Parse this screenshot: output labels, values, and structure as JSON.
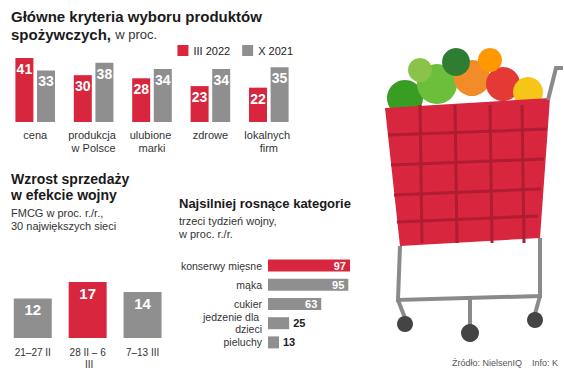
{
  "chart_data": [
    {
      "type": "bar",
      "title": "Główne kryteria wyboru produktów\nspożywczych,",
      "subtitle": "w proc.",
      "categories": [
        "cena",
        "produkcja w Polsce",
        "ulubione marki",
        "zdrowe",
        "lokalnych firm"
      ],
      "series": [
        {
          "name": "III 2022",
          "color": "#d7263d",
          "values": [
            41,
            30,
            28,
            23,
            22
          ]
        },
        {
          "name": "X 2021",
          "color": "#8f8f8f",
          "values": [
            33,
            38,
            34,
            34,
            35
          ]
        }
      ],
      "ylim": [
        0,
        41
      ],
      "yticks": [],
      "grid": false,
      "legend": "top-right",
      "data_labels": true,
      "tick_labels": "x"
    },
    {
      "type": "bar",
      "title": "Wzrost sprzedaży\nw efekcie wojny",
      "subtitle": "FMCG w proc. r./r.,\n30 największych sieci",
      "categories": [
        "21–27 II",
        "28 II – 6 III",
        "7–13 III"
      ],
      "values": [
        12,
        17,
        14
      ],
      "colors": [
        "#8f8f8f",
        "#d7263d",
        "#8f8f8f"
      ],
      "ylim": [
        0,
        17
      ],
      "yticks": [],
      "grid": false,
      "data_labels": true,
      "tick_labels": "x"
    },
    {
      "type": "bar",
      "orientation": "horizontal",
      "title": "Najsilniej rosnące kategorie",
      "subtitle": "trzeci tydzień wojny,\nw proc. r./r.",
      "categories": [
        "konserwy mięsne",
        "mąka",
        "cukier",
        "jedzenie dla dzieci",
        "pieluchy"
      ],
      "values": [
        97,
        95,
        63,
        25,
        13
      ],
      "colors": [
        "#d7263d",
        "#8f8f8f",
        "#8f8f8f",
        "#8f8f8f",
        "#8f8f8f"
      ],
      "xlim": [
        0,
        97
      ],
      "xticks": [],
      "grid": false,
      "data_labels": true,
      "tick_labels": "y"
    }
  ],
  "source": "Źródło: NielsenIQ",
  "credit": "Info: K"
}
